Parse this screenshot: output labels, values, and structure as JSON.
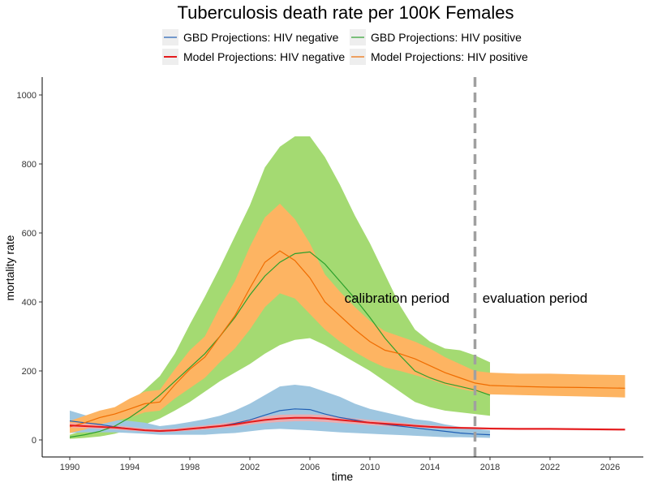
{
  "chart_data": {
    "type": "line",
    "title": "Tuberculosis death rate per 100K Females",
    "xlabel": "time",
    "ylabel": "mortality rate",
    "xlim": [
      1990,
      2027
    ],
    "ylim": [
      0,
      1000
    ],
    "xticks": [
      "1990",
      "1994",
      "1998",
      "2002",
      "2006",
      "2010",
      "2014",
      "2018",
      "2022",
      "2026"
    ],
    "yticks": [
      "0",
      "200",
      "400",
      "600",
      "800",
      "1000"
    ],
    "grid": false,
    "legend_position": "top",
    "vline": {
      "x": 2017,
      "color": "#a0a0a0",
      "style": "dashed"
    },
    "annotations": [
      {
        "text": "calibration period",
        "x": 2015.3,
        "y": 440,
        "anchor": "end"
      },
      {
        "text": "evaluation period",
        "x": 2017.5,
        "y": 440,
        "anchor": "start"
      }
    ],
    "series": [
      {
        "name": "GBD Projections: HIV negative",
        "color": "#1f5fb4",
        "band_color": "#9ec6e0",
        "x": [
          1990,
          1991,
          1992,
          1993,
          1994,
          1995,
          1996,
          1997,
          1998,
          1999,
          2000,
          2001,
          2002,
          2003,
          2004,
          2005,
          2006,
          2007,
          2008,
          2009,
          2010,
          2011,
          2012,
          2013,
          2014,
          2015,
          2016,
          2017,
          2018
        ],
        "values": [
          55,
          50,
          45,
          38,
          32,
          28,
          25,
          28,
          32,
          35,
          40,
          48,
          58,
          72,
          85,
          90,
          88,
          75,
          65,
          58,
          50,
          45,
          40,
          35,
          30,
          25,
          20,
          17,
          15
        ],
        "lower": [
          20,
          22,
          22,
          22,
          20,
          18,
          15,
          15,
          15,
          15,
          18,
          20,
          25,
          30,
          32,
          30,
          28,
          25,
          22,
          20,
          18,
          16,
          14,
          12,
          10,
          8,
          8,
          7,
          6
        ],
        "upper": [
          85,
          72,
          65,
          58,
          55,
          50,
          40,
          45,
          52,
          60,
          70,
          85,
          105,
          130,
          155,
          160,
          155,
          140,
          125,
          105,
          90,
          80,
          70,
          60,
          55,
          45,
          38,
          32,
          28
        ]
      },
      {
        "name": "GBD Projections: HIV positive",
        "color": "#2ca02c",
        "band_color": "#a4da72",
        "x": [
          1990,
          1991,
          1992,
          1993,
          1994,
          1995,
          1996,
          1997,
          1998,
          1999,
          2000,
          2001,
          2002,
          2003,
          2004,
          2005,
          2006,
          2007,
          2008,
          2009,
          2010,
          2011,
          2012,
          2013,
          2014,
          2015,
          2016,
          2017,
          2018
        ],
        "values": [
          8,
          15,
          25,
          40,
          65,
          95,
          130,
          170,
          210,
          250,
          300,
          355,
          420,
          475,
          515,
          540,
          545,
          510,
          460,
          410,
          355,
          295,
          245,
          200,
          180,
          165,
          155,
          145,
          130
        ],
        "lower": [
          3,
          6,
          10,
          18,
          30,
          45,
          62,
          85,
          110,
          140,
          170,
          195,
          220,
          250,
          275,
          290,
          295,
          275,
          250,
          225,
          200,
          170,
          140,
          110,
          95,
          85,
          80,
          75,
          70
        ],
        "upper": [
          15,
          28,
          45,
          70,
          110,
          145,
          185,
          250,
          335,
          415,
          500,
          590,
          680,
          790,
          850,
          880,
          880,
          820,
          740,
          650,
          570,
          480,
          390,
          320,
          285,
          265,
          260,
          245,
          225
        ]
      },
      {
        "name": "Model Projections: HIV negative",
        "color": "#e41a1c",
        "band_color": "#f7a7a7",
        "x": [
          1990,
          1991,
          1992,
          1993,
          1994,
          1995,
          1996,
          1997,
          1998,
          1999,
          2000,
          2001,
          2002,
          2003,
          2004,
          2005,
          2006,
          2007,
          2008,
          2009,
          2010,
          2011,
          2012,
          2013,
          2014,
          2015,
          2016,
          2017,
          2018,
          2020,
          2022,
          2024,
          2027
        ],
        "values": [
          42,
          40,
          38,
          36,
          32,
          28,
          26,
          28,
          32,
          36,
          40,
          45,
          52,
          58,
          62,
          64,
          64,
          62,
          58,
          54,
          50,
          47,
          44,
          41,
          38,
          36,
          35,
          34,
          33,
          32,
          32,
          31,
          30
        ],
        "lower": [
          35,
          34,
          32,
          30,
          27,
          24,
          22,
          24,
          27,
          30,
          34,
          38,
          44,
          49,
          52,
          54,
          54,
          52,
          49,
          46,
          43,
          40,
          38,
          36,
          34,
          33,
          32,
          31,
          30,
          29,
          29,
          28,
          27
        ],
        "upper": [
          50,
          48,
          45,
          42,
          38,
          33,
          31,
          33,
          38,
          42,
          47,
          53,
          60,
          68,
          73,
          74,
          74,
          72,
          67,
          62,
          58,
          54,
          50,
          46,
          43,
          40,
          38,
          37,
          36,
          35,
          35,
          34,
          33
        ]
      },
      {
        "name": "Model Projections: HIV positive",
        "color": "#ef6c00",
        "band_color": "#fdb462",
        "x": [
          1990,
          1991,
          1992,
          1993,
          1994,
          1995,
          1996,
          1997,
          1998,
          1999,
          2000,
          2001,
          2002,
          2003,
          2004,
          2005,
          2006,
          2007,
          2008,
          2009,
          2010,
          2011,
          2012,
          2013,
          2014,
          2015,
          2016,
          2017,
          2018,
          2020,
          2022,
          2024,
          2027
        ],
        "values": [
          38,
          50,
          65,
          75,
          90,
          105,
          110,
          160,
          205,
          240,
          300,
          360,
          440,
          515,
          548,
          520,
          470,
          400,
          360,
          320,
          285,
          260,
          250,
          235,
          215,
          195,
          180,
          165,
          158,
          155,
          153,
          152,
          150
        ],
        "lower": [
          20,
          30,
          45,
          55,
          65,
          80,
          85,
          120,
          150,
          180,
          225,
          265,
          320,
          385,
          425,
          410,
          365,
          320,
          285,
          255,
          230,
          210,
          200,
          188,
          175,
          160,
          148,
          140,
          132,
          130,
          128,
          126,
          123
        ],
        "upper": [
          55,
          70,
          85,
          95,
          120,
          140,
          145,
          205,
          260,
          300,
          385,
          460,
          560,
          645,
          685,
          640,
          570,
          480,
          430,
          385,
          345,
          315,
          300,
          285,
          265,
          240,
          220,
          200,
          195,
          192,
          192,
          190,
          188
        ]
      }
    ]
  }
}
